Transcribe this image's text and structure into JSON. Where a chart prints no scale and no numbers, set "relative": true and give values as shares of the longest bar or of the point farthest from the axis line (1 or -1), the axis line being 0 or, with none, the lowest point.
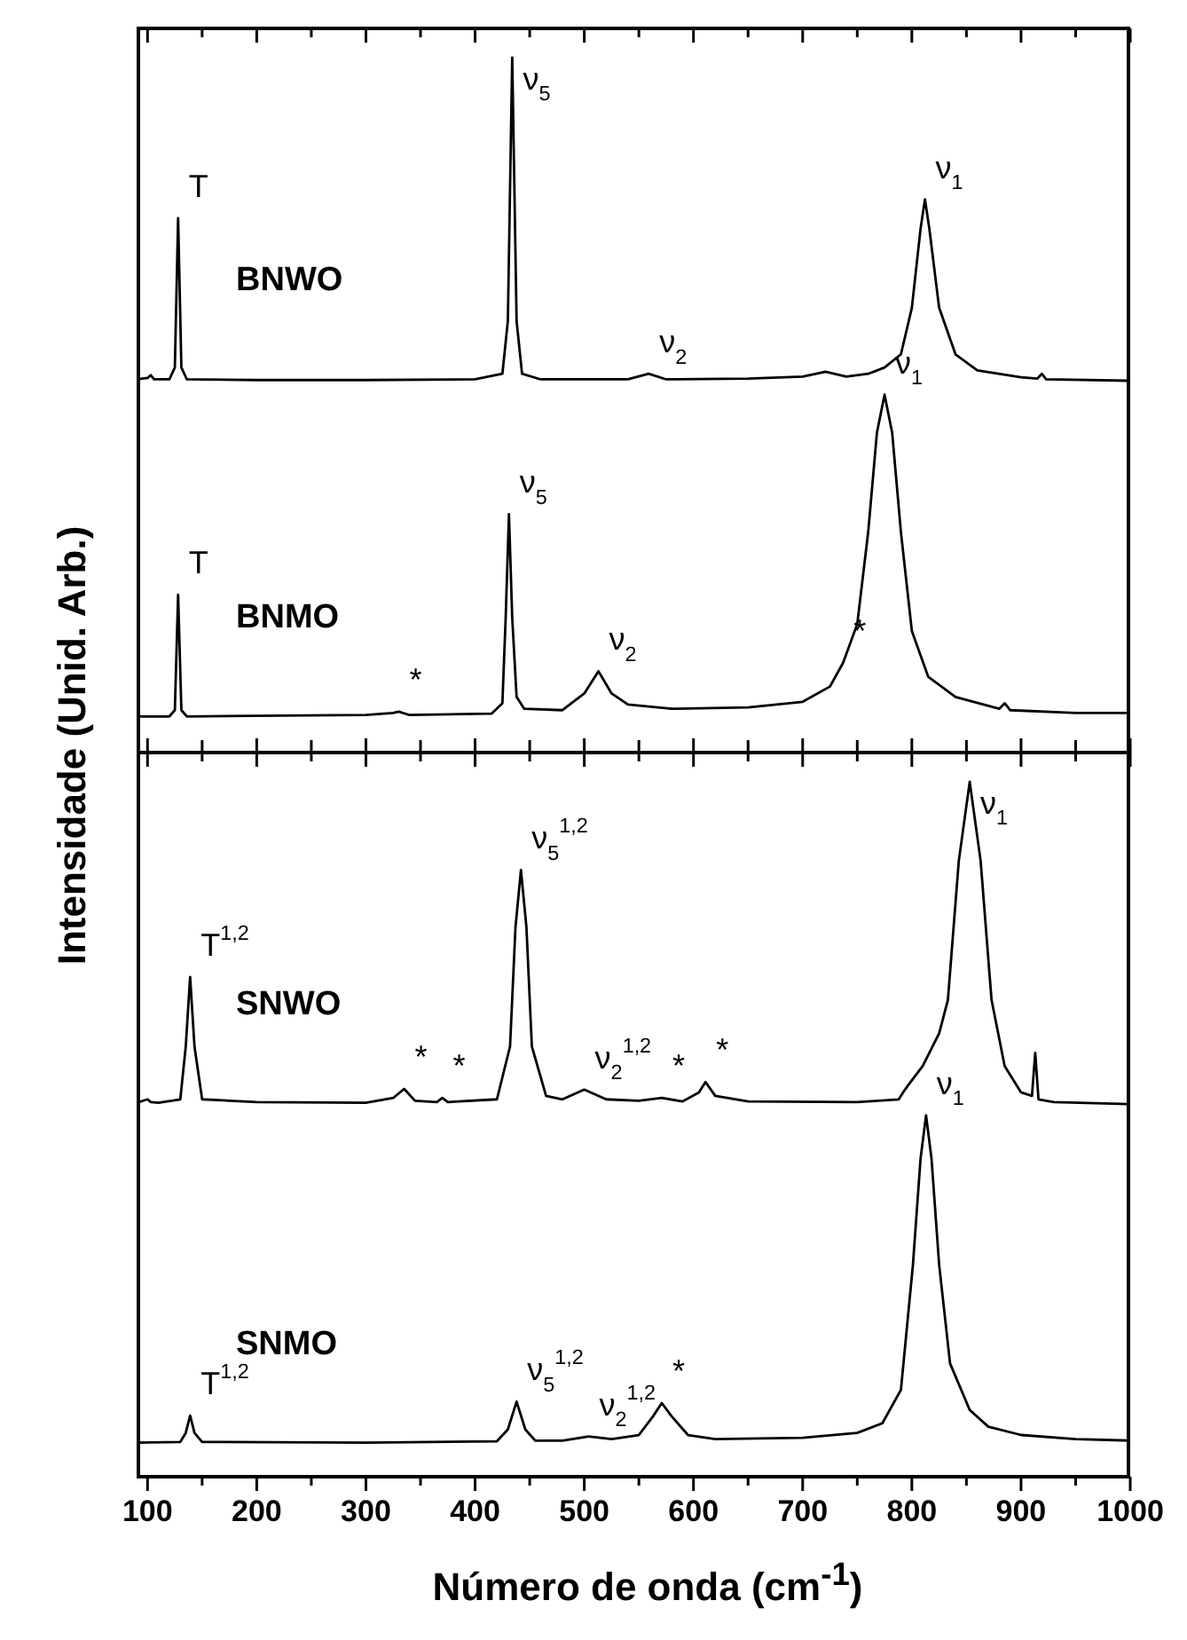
{
  "chart_data": [
    {
      "type": "line",
      "relative": true,
      "ylabel": "Intensidade (Unid. Arb.)",
      "xlim": [
        90,
        1000
      ],
      "tick_labels": false,
      "xticks": [
        100,
        {
          "value": 150,
          "label": null
        },
        200,
        {
          "value": 250,
          "label": null
        },
        300,
        {
          "value": 350,
          "label": null
        },
        400,
        {
          "value": 450,
          "label": null
        },
        500,
        {
          "value": 550,
          "label": null
        },
        600,
        {
          "value": 650,
          "label": null
        },
        700,
        {
          "value": 750,
          "label": null
        },
        800,
        {
          "value": 850,
          "label": null
        },
        900,
        {
          "value": 950,
          "label": null
        },
        1000
      ],
      "series": [
        {
          "name": "BNWO",
          "color": "#000000",
          "x": [
            90,
            100,
            103,
            106,
            120,
            125,
            128,
            131,
            136,
            200,
            300,
            400,
            425,
            430,
            434,
            438,
            443,
            460,
            540,
            559,
            575,
            650,
            700,
            721,
            740,
            760,
            775,
            790,
            800,
            808,
            812,
            816,
            825,
            840,
            860,
            900,
            915,
            919,
            923,
            1000
          ],
          "values": [
            0.537,
            0.539,
            0.543,
            0.537,
            0.537,
            0.554,
            0.769,
            0.554,
            0.537,
            0.536,
            0.536,
            0.537,
            0.545,
            0.621,
            1.0,
            0.621,
            0.545,
            0.537,
            0.537,
            0.545,
            0.537,
            0.538,
            0.541,
            0.548,
            0.541,
            0.545,
            0.554,
            0.573,
            0.64,
            0.754,
            0.796,
            0.754,
            0.64,
            0.573,
            0.55,
            0.54,
            0.538,
            0.545,
            0.537,
            0.535
          ]
        },
        {
          "name": "BNMO",
          "color": "#000000",
          "x": [
            90,
            120,
            125,
            128,
            131,
            136,
            300,
            325,
            330,
            340,
            415,
            425,
            428,
            431,
            434,
            438,
            445,
            480,
            500,
            513,
            525,
            540,
            580,
            650,
            700,
            725,
            737,
            750,
            760,
            768,
            775,
            782,
            790,
            800,
            815,
            840,
            880,
            885,
            890,
            950,
            1000
          ],
          "values": [
            0.052,
            0.052,
            0.061,
            0.227,
            0.061,
            0.052,
            0.054,
            0.057,
            0.059,
            0.054,
            0.056,
            0.071,
            0.194,
            0.343,
            0.194,
            0.08,
            0.063,
            0.061,
            0.085,
            0.117,
            0.085,
            0.069,
            0.063,
            0.065,
            0.073,
            0.095,
            0.129,
            0.185,
            0.317,
            0.46,
            0.515,
            0.46,
            0.317,
            0.175,
            0.109,
            0.08,
            0.063,
            0.071,
            0.061,
            0.057,
            0.057
          ]
        }
      ],
      "annotations": [
        {
          "text": "T",
          "x": 128,
          "y": 0.769
        },
        {
          "text": "ν$_{5}$",
          "x": 434,
          "y": 1.0
        },
        {
          "text": "ν$_{2}$",
          "x": 559,
          "y": 0.545
        },
        {
          "text": "ν$_{1}$",
          "x": 812,
          "y": 0.796
        },
        {
          "text": "T",
          "x": 128,
          "y": 0.227
        },
        {
          "text": "*",
          "x": 330,
          "y": 0.059
        },
        {
          "text": "ν$_{5}$",
          "x": 431,
          "y": 0.343
        },
        {
          "text": "ν$_{2}$",
          "x": 513,
          "y": 0.117
        },
        {
          "text": "*",
          "x": 737,
          "y": 0.129
        },
        {
          "text": "ν$_{1}$",
          "x": 775,
          "y": 0.515
        }
      ]
    },
    {
      "type": "line",
      "relative": true,
      "xlabel": "Número de onda (cm$^{-1}$)",
      "xlim": [
        90,
        1000
      ],
      "tick_labels": "x",
      "xticks": [
        100,
        {
          "value": 150,
          "label": null
        },
        200,
        {
          "value": 250,
          "label": null
        },
        300,
        {
          "value": 350,
          "label": null
        },
        400,
        {
          "value": 450,
          "label": null
        },
        500,
        {
          "value": 550,
          "label": null
        },
        600,
        {
          "value": 650,
          "label": null
        },
        700,
        {
          "value": 750,
          "label": null
        },
        800,
        {
          "value": 850,
          "label": null
        },
        900,
        {
          "value": 950,
          "label": null
        },
        1000
      ],
      "series": [
        {
          "name": "SNWO",
          "color": "#000000",
          "x": [
            90,
            100,
            103,
            110,
            130,
            135,
            139,
            143,
            150,
            200,
            300,
            325,
            335,
            345,
            365,
            370,
            375,
            420,
            432,
            437,
            442,
            447,
            452,
            465,
            480,
            500,
            520,
            550,
            571,
            590,
            605,
            611,
            620,
            650,
            750,
            788,
            792,
            796,
            810,
            825,
            833,
            843,
            853,
            863,
            873,
            885,
            900,
            910,
            913,
            916,
            930,
            1000
          ],
          "values": [
            0.538,
            0.543,
            0.539,
            0.538,
            0.543,
            0.619,
            0.719,
            0.619,
            0.543,
            0.539,
            0.538,
            0.545,
            0.558,
            0.541,
            0.539,
            0.545,
            0.539,
            0.543,
            0.619,
            0.791,
            0.873,
            0.791,
            0.619,
            0.548,
            0.543,
            0.557,
            0.543,
            0.541,
            0.545,
            0.54,
            0.553,
            0.568,
            0.548,
            0.54,
            0.539,
            0.543,
            0.553,
            0.562,
            0.591,
            0.638,
            0.686,
            0.886,
            1.0,
            0.886,
            0.686,
            0.591,
            0.553,
            0.548,
            0.61,
            0.543,
            0.539,
            0.536
          ]
        },
        {
          "name": "SNMO",
          "color": "#000000",
          "x": [
            90,
            130,
            135,
            139,
            143,
            150,
            300,
            420,
            430,
            438,
            446,
            455,
            480,
            504,
            525,
            550,
            563,
            571,
            580,
            595,
            620,
            700,
            750,
            773,
            790,
            801,
            808,
            813,
            818,
            825,
            835,
            853,
            870,
            900,
            950,
            1000
          ],
          "values": [
            0.049,
            0.05,
            0.063,
            0.088,
            0.063,
            0.05,
            0.049,
            0.051,
            0.068,
            0.108,
            0.068,
            0.052,
            0.052,
            0.058,
            0.054,
            0.06,
            0.087,
            0.106,
            0.087,
            0.06,
            0.054,
            0.056,
            0.063,
            0.077,
            0.125,
            0.305,
            0.458,
            0.52,
            0.458,
            0.305,
            0.163,
            0.096,
            0.072,
            0.06,
            0.054,
            0.052
          ]
        }
      ],
      "annotations": [
        {
          "text": "T$^{1,2}$",
          "x": 139,
          "y": 0.719
        },
        {
          "text": "*",
          "x": 335,
          "y": 0.558
        },
        {
          "text": "*",
          "x": 370,
          "y": 0.545
        },
        {
          "text": "ν$_{5}$$^{1,2}$",
          "x": 442,
          "y": 0.873
        },
        {
          "text": "ν$_{2}$$^{1,2}$",
          "x": 500,
          "y": 0.557
        },
        {
          "text": "*",
          "x": 571,
          "y": 0.545
        },
        {
          "text": "*",
          "x": 611,
          "y": 0.568
        },
        {
          "text": "ν$_{1}$",
          "x": 853,
          "y": 1.0
        },
        {
          "text": "T$^{1,2}$",
          "x": 139,
          "y": 0.088
        },
        {
          "text": "ν$_{5}$$^{1,2}$",
          "x": 438,
          "y": 0.108
        },
        {
          "text": "ν$_{2}$$^{1,2}$",
          "x": 504,
          "y": 0.058
        },
        {
          "text": "*",
          "x": 571,
          "y": 0.106
        },
        {
          "text": "ν$_{1}$",
          "x": 813,
          "y": 0.52
        }
      ]
    }
  ]
}
